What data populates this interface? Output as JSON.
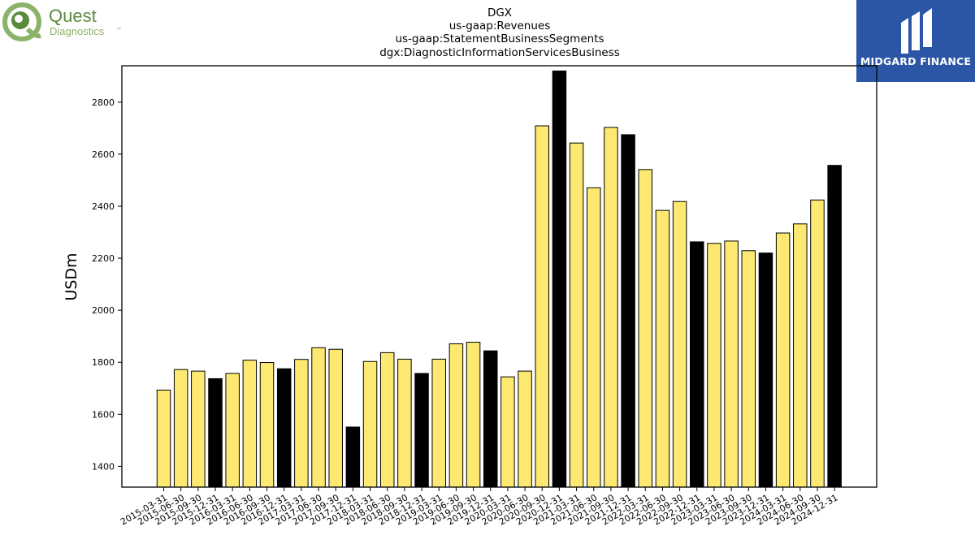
{
  "logos": {
    "left": {
      "line1": "Quest",
      "line2": "Diagnostics",
      "mark": "™",
      "color": "#5a8a3c",
      "light_color": "#8db36a"
    },
    "right": {
      "text": "MIDGARD FINANCE",
      "background": "#2b55a5"
    }
  },
  "chart_data": {
    "type": "bar",
    "title_lines": [
      "DGX",
      "us-gaap:Revenues",
      "us-gaap:StatementBusinessSegments",
      "dgx:DiagnosticInformationServicesBusiness"
    ],
    "xlabel": "",
    "ylabel": "USDm",
    "ylim": [
      1320,
      2940
    ],
    "yticks": [
      1400,
      1600,
      1800,
      2000,
      2200,
      2400,
      2600,
      2800
    ],
    "grid": false,
    "colors": {
      "quarter": "#fde971",
      "year_end": "#000000",
      "edge": "#000000"
    },
    "categories": [
      "2015-03-31",
      "2015-06-30",
      "2015-09-30",
      "2015-12-31",
      "2016-03-31",
      "2016-06-30",
      "2016-09-30",
      "2016-12-31",
      "2017-03-31",
      "2017-06-30",
      "2017-09-30",
      "2017-12-31",
      "2018-03-31",
      "2018-06-30",
      "2018-09-30",
      "2018-12-31",
      "2019-03-31",
      "2019-06-30",
      "2019-09-30",
      "2019-12-31",
      "2020-03-31",
      "2020-06-30",
      "2020-09-30",
      "2020-12-31",
      "2021-03-31",
      "2021-06-30",
      "2021-09-30",
      "2021-12-31",
      "2022-03-31",
      "2022-06-30",
      "2022-09-30",
      "2022-12-31",
      "2023-03-31",
      "2023-06-30",
      "2023-09-30",
      "2023-12-31",
      "2024-03-31",
      "2024-06-30",
      "2024-09-30",
      "2024-12-31"
    ],
    "values": [
      1693,
      1772,
      1766,
      1737,
      1757,
      1808,
      1799,
      1775,
      1811,
      1856,
      1850,
      1551,
      1803,
      1837,
      1812,
      1757,
      1812,
      1871,
      1877,
      1844,
      1744,
      1766,
      2709,
      2920,
      2643,
      2471,
      2703,
      2675,
      2541,
      2384,
      2418,
      2263,
      2257,
      2266,
      2229,
      2220,
      2297,
      2332,
      2424,
      2557
    ]
  }
}
